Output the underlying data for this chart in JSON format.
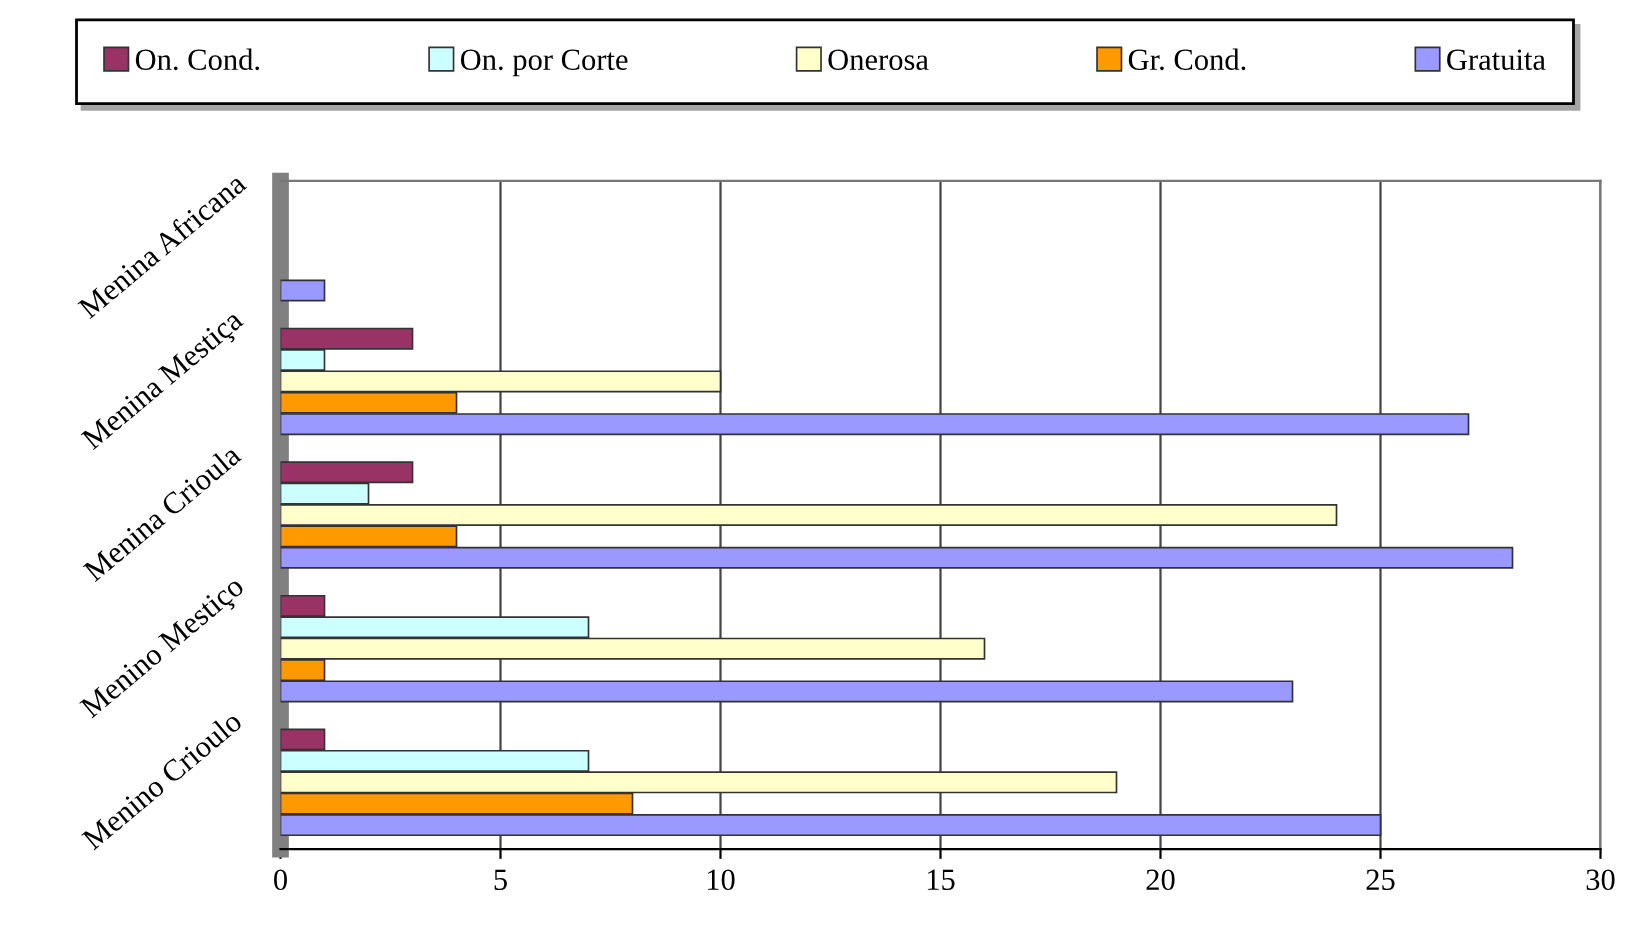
{
  "chart_data": {
    "type": "bar",
    "orientation": "horizontal",
    "categories": [
      "Menina Africana",
      "Menina Mestiça",
      "Menina Crioula",
      "Menino Mestiço",
      "Menino Crioulo"
    ],
    "series": [
      {
        "name": "On. Cond.",
        "color": "#993366",
        "values": [
          null,
          3,
          3,
          1,
          1
        ]
      },
      {
        "name": "On. por Corte",
        "color": "#ccffff",
        "values": [
          null,
          1,
          2,
          7,
          7
        ]
      },
      {
        "name": "Onerosa",
        "color": "#ffffcc",
        "values": [
          null,
          10,
          24,
          16,
          19
        ]
      },
      {
        "name": "Gr. Cond.",
        "color": "#ff9900",
        "values": [
          null,
          4,
          4,
          1,
          8
        ]
      },
      {
        "name": "Gratuita",
        "color": "#9999ff",
        "values": [
          1,
          27,
          28,
          23,
          25
        ]
      }
    ],
    "xlim": [
      0,
      30
    ],
    "xticks": [
      0,
      5,
      10,
      15,
      20,
      25,
      30
    ],
    "grid": "x",
    "legend": "top"
  }
}
